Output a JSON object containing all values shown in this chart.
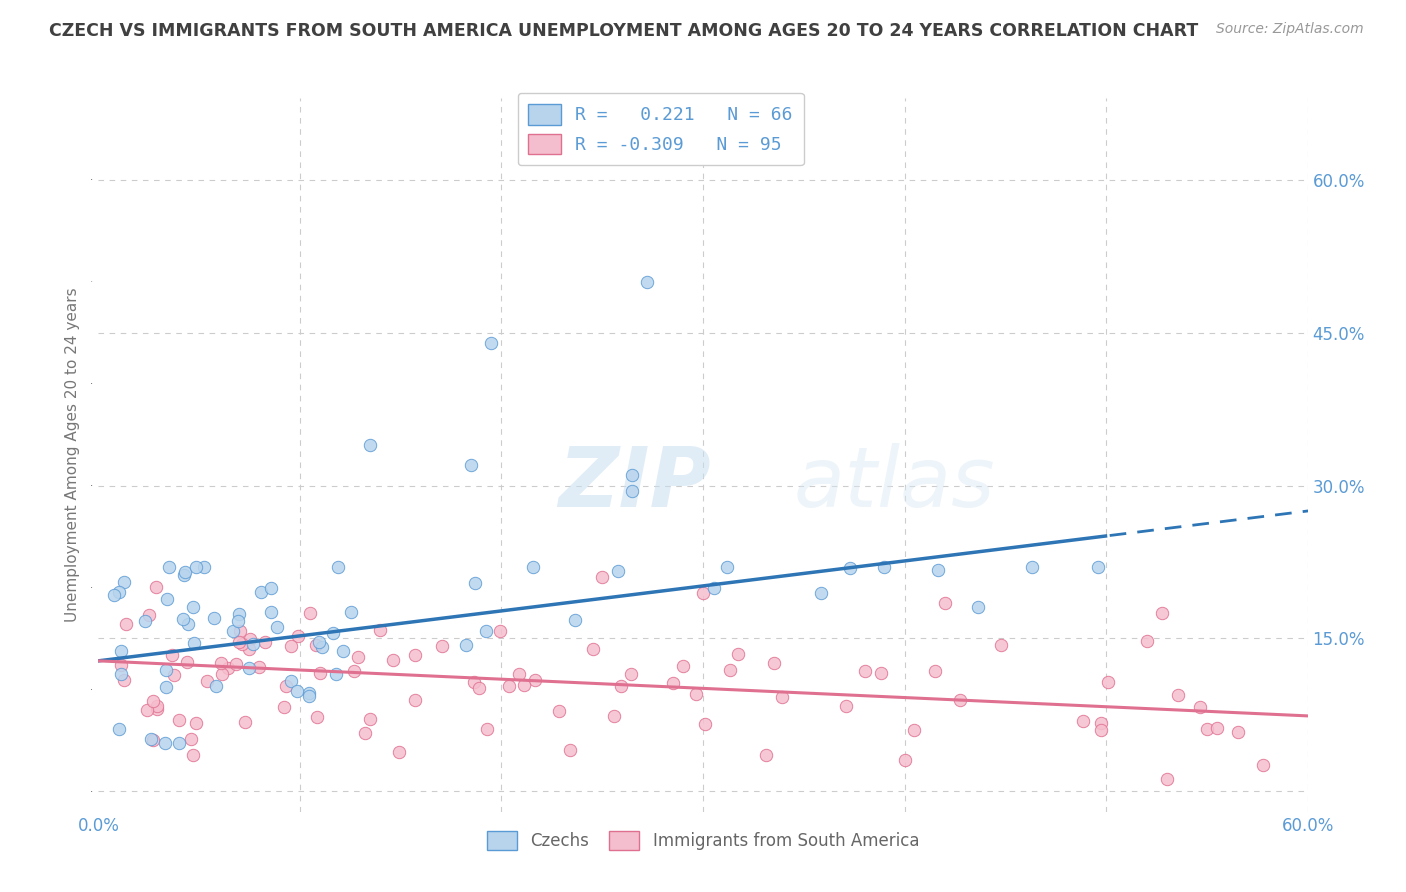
{
  "title": "CZECH VS IMMIGRANTS FROM SOUTH AMERICA UNEMPLOYMENT AMONG AGES 20 TO 24 YEARS CORRELATION CHART",
  "source": "Source: ZipAtlas.com",
  "ylabel": "Unemployment Among Ages 20 to 24 years",
  "xlim": [
    0.0,
    0.6
  ],
  "ylim": [
    -0.02,
    0.68
  ],
  "xticks": [
    0.0,
    0.1,
    0.2,
    0.3,
    0.4,
    0.5,
    0.6
  ],
  "xticklabels": [
    "0.0%",
    "",
    "",
    "",
    "",
    "",
    "60.0%"
  ],
  "yticks_right": [
    0.0,
    0.15,
    0.3,
    0.45,
    0.6
  ],
  "ytick_right_labels": [
    "",
    "15.0%",
    "30.0%",
    "45.0%",
    "60.0%"
  ],
  "czech_color": "#b8d4ed",
  "czech_edge_color": "#5b9bd5",
  "immigrant_color": "#f5bece",
  "immigrant_edge_color": "#e07090",
  "czech_line_color": "#2e75b6",
  "immigrant_line_color": "#e07090",
  "legend_czech_label": "R =   0.221   N = 66",
  "legend_immigrant_label": "R = -0.309   N = 95",
  "watermark_zip": "ZIP",
  "watermark_atlas": "atlas",
  "R_czech": 0.221,
  "N_czech": 66,
  "R_immigrant": -0.309,
  "N_immigrant": 95,
  "background_color": "#ffffff",
  "grid_color": "#cccccc",
  "title_color": "#404040",
  "axis_color": "#5b9bd5",
  "czech_line_intercept": 0.128,
  "czech_line_slope": 0.245,
  "immigrant_line_intercept": 0.128,
  "immigrant_line_slope": -0.09
}
